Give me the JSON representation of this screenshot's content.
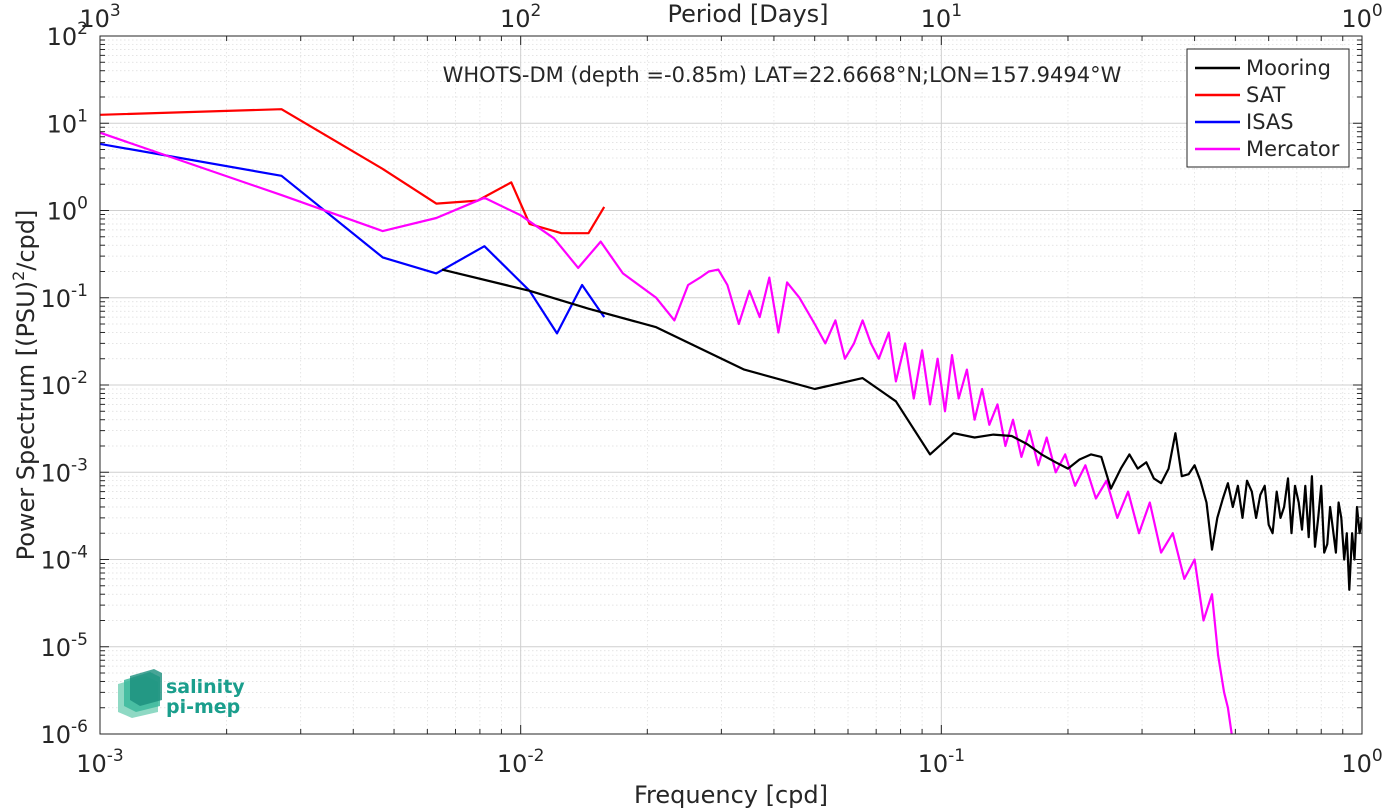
{
  "chart_data": {
    "type": "line",
    "title": "WHOTS-DM (depth =-0.85m) LAT=22.6668°N;LON=157.9494°W",
    "xlabel": "Frequency [cpd]",
    "ylabel": "Power Spectrum [(PSU)",
    "ylabel_sup": "2",
    "ylabel_tail": "/cpd]",
    "top_xlabel": "Period [Days]",
    "x_scale": "log",
    "y_scale": "log",
    "xlim": [
      0.001,
      1
    ],
    "ylim": [
      1e-06,
      100
    ],
    "grid": true,
    "minor_grid": true,
    "legend_position": "top-right",
    "x_ticks": [
      {
        "base": "10",
        "exp": "-3"
      },
      {
        "base": "10",
        "exp": "-2"
      },
      {
        "base": "10",
        "exp": "-1"
      },
      {
        "base": "10",
        "exp": "0"
      }
    ],
    "top_ticks": [
      {
        "base": "10",
        "exp": "3"
      },
      {
        "base": "10",
        "exp": "2"
      },
      {
        "base": "10",
        "exp": "1"
      },
      {
        "base": "10",
        "exp": "0"
      }
    ],
    "y_ticks": [
      {
        "base": "10",
        "exp": "2"
      },
      {
        "base": "10",
        "exp": "1"
      },
      {
        "base": "10",
        "exp": "0"
      },
      {
        "base": "10",
        "exp": "-1"
      },
      {
        "base": "10",
        "exp": "-2"
      },
      {
        "base": "10",
        "exp": "-3"
      },
      {
        "base": "10",
        "exp": "-4"
      },
      {
        "base": "10",
        "exp": "-5"
      },
      {
        "base": "10",
        "exp": "-6"
      }
    ],
    "series": [
      {
        "name": "Mooring",
        "color": "#000000",
        "x": [
          0.0065,
          0.0105,
          0.0145,
          0.021,
          0.034,
          0.05,
          0.065,
          0.078,
          0.094,
          0.107,
          0.12,
          0.133,
          0.147,
          0.16,
          0.173,
          0.187,
          0.2,
          0.213,
          0.227,
          0.24,
          0.253,
          0.267,
          0.28,
          0.293,
          0.307,
          0.32,
          0.333,
          0.347,
          0.36,
          0.373,
          0.387,
          0.4,
          0.413,
          0.427,
          0.44,
          0.453,
          0.467,
          0.48,
          0.493,
          0.507,
          0.52,
          0.533,
          0.547,
          0.56,
          0.573,
          0.587,
          0.6,
          0.613,
          0.627,
          0.64,
          0.653,
          0.667,
          0.68,
          0.693,
          0.707,
          0.72,
          0.733,
          0.747,
          0.76,
          0.773,
          0.787,
          0.8,
          0.813,
          0.827,
          0.84,
          0.853,
          0.867,
          0.88,
          0.893,
          0.907,
          0.92,
          0.933,
          0.947,
          0.96,
          0.973,
          0.987,
          1.0
        ],
        "y": [
          0.21,
          0.12,
          0.075,
          0.046,
          0.015,
          0.009,
          0.012,
          0.0065,
          0.0016,
          0.0028,
          0.0025,
          0.0027,
          0.0026,
          0.0021,
          0.0016,
          0.0013,
          0.0011,
          0.0014,
          0.0016,
          0.0015,
          0.00065,
          0.0011,
          0.0016,
          0.0011,
          0.0013,
          0.00085,
          0.00075,
          0.0011,
          0.0028,
          0.0009,
          0.00095,
          0.0012,
          0.0008,
          0.00045,
          0.00013,
          0.0003,
          0.0005,
          0.00075,
          0.0004,
          0.0007,
          0.0003,
          0.0008,
          0.0006,
          0.0003,
          0.00055,
          0.0007,
          0.00025,
          0.0002,
          0.0006,
          0.0003,
          0.0004,
          0.00085,
          0.0002,
          0.0007,
          0.00045,
          0.00022,
          0.0007,
          0.00018,
          0.0009,
          0.00014,
          0.0003,
          0.0007,
          0.00012,
          0.00015,
          0.0004,
          0.00022,
          0.00012,
          0.00045,
          0.0003,
          0.0001,
          0.0002,
          4.5e-05,
          0.0002,
          0.0001,
          0.0004,
          0.0002,
          0.0003
        ]
      },
      {
        "name": "SAT",
        "color": "#ff0000",
        "x": [
          0.001,
          0.0027,
          0.0047,
          0.0063,
          0.0079,
          0.0095,
          0.0105,
          0.0125,
          0.0145,
          0.0158
        ],
        "y": [
          12.5,
          14.5,
          3.0,
          1.2,
          1.3,
          2.1,
          0.7,
          0.55,
          0.55,
          1.1
        ]
      },
      {
        "name": "ISAS",
        "color": "#0000ff",
        "x": [
          0.001,
          0.0027,
          0.0047,
          0.0063,
          0.0082,
          0.0105,
          0.0122,
          0.014,
          0.0158
        ],
        "y": [
          5.8,
          2.5,
          0.29,
          0.19,
          0.39,
          0.12,
          0.039,
          0.14,
          0.06
        ]
      },
      {
        "name": "Mercator",
        "color": "#ff00ff",
        "x": [
          0.001,
          0.0027,
          0.0047,
          0.0063,
          0.0082,
          0.01,
          0.012,
          0.0137,
          0.0155,
          0.0175,
          0.021,
          0.0232,
          0.025,
          0.0267,
          0.028,
          0.0295,
          0.031,
          0.033,
          0.035,
          0.037,
          0.039,
          0.041,
          0.043,
          0.046,
          0.05,
          0.053,
          0.056,
          0.059,
          0.062,
          0.065,
          0.068,
          0.071,
          0.075,
          0.078,
          0.082,
          0.086,
          0.09,
          0.094,
          0.098,
          0.102,
          0.106,
          0.11,
          0.115,
          0.12,
          0.125,
          0.13,
          0.136,
          0.142,
          0.148,
          0.155,
          0.162,
          0.17,
          0.178,
          0.187,
          0.197,
          0.208,
          0.22,
          0.233,
          0.247,
          0.262,
          0.278,
          0.295,
          0.313,
          0.333,
          0.355,
          0.378,
          0.4,
          0.42,
          0.44,
          0.455,
          0.47,
          0.48,
          0.49
        ],
        "y": [
          7.8,
          1.5,
          0.58,
          0.82,
          1.4,
          0.88,
          0.48,
          0.22,
          0.44,
          0.19,
          0.1,
          0.055,
          0.14,
          0.17,
          0.2,
          0.21,
          0.14,
          0.05,
          0.12,
          0.06,
          0.17,
          0.04,
          0.15,
          0.1,
          0.05,
          0.03,
          0.055,
          0.02,
          0.03,
          0.055,
          0.03,
          0.02,
          0.04,
          0.011,
          0.03,
          0.007,
          0.025,
          0.006,
          0.02,
          0.005,
          0.022,
          0.007,
          0.015,
          0.004,
          0.009,
          0.0035,
          0.006,
          0.002,
          0.004,
          0.0015,
          0.003,
          0.0012,
          0.0025,
          0.001,
          0.0016,
          0.0007,
          0.0012,
          0.0005,
          0.0008,
          0.0003,
          0.0006,
          0.0002,
          0.00045,
          0.00012,
          0.0002,
          6e-05,
          0.0001,
          2e-05,
          4e-05,
          8e-06,
          3e-06,
          2e-06,
          1e-06
        ]
      }
    ]
  },
  "logo": {
    "line1": "salinity",
    "line2": "pi-mep"
  }
}
